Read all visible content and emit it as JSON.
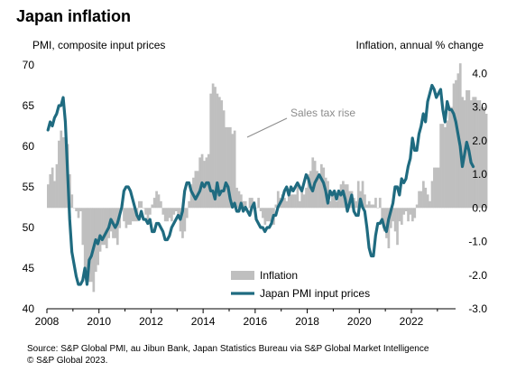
{
  "header": {
    "title": "Japan inflation",
    "left_axis_title": "PMI, composite input prices",
    "right_axis_title": "Inflation, annual % change"
  },
  "footer": {
    "source": "Source: S&P Global PMI, au Jibun Bank, Japan Statistics Bureau via S&P Global Market Intelligence",
    "copyright": "© S&P Global 2023."
  },
  "colors": {
    "inflation_bar": "#bfbfbf",
    "pmi_line": "#1f6b80",
    "annotation": "#8c8c8c"
  },
  "chart_data": {
    "type": "bar",
    "title": "Japan inflation",
    "x_ticks": [
      "2008",
      "2010",
      "2012",
      "2014",
      "2016",
      "2018",
      "2020",
      "2022"
    ],
    "left_axis": {
      "label": "PMI, composite input prices",
      "ticks": [
        "40",
        "45",
        "50",
        "55",
        "60",
        "65",
        "70"
      ],
      "ylim": [
        40,
        70
      ]
    },
    "right_axis": {
      "label": "Inflation, annual % change",
      "ticks": [
        "-3.0",
        "-2.0",
        "-1.0",
        "0.0",
        "1.0",
        "2.0",
        "3.0",
        "4.0"
      ],
      "ylim": [
        -3,
        4.25
      ]
    },
    "annotation": {
      "text": "Sales tax rise",
      "points_to": "2015-04"
    },
    "series": [
      {
        "name": "Inflation",
        "kind": "bar",
        "axis": "right",
        "x_start": "2008-01",
        "frequency": "monthly",
        "values": [
          0.7,
          1.0,
          1.2,
          0.8,
          1.3,
          2.0,
          2.3,
          2.1,
          2.1,
          1.9,
          1.0,
          0.4,
          0.0,
          -0.1,
          -0.3,
          -0.1,
          -1.1,
          -1.8,
          -2.2,
          -2.2,
          -2.2,
          -2.5,
          -1.9,
          -1.7,
          -1.3,
          -1.1,
          -1.1,
          -1.2,
          -0.9,
          -0.7,
          -0.9,
          -0.9,
          -1.1,
          -0.6,
          0.1,
          -0.4,
          -0.6,
          -0.5,
          -0.5,
          -0.4,
          -0.4,
          -0.4,
          0.2,
          0.2,
          0.0,
          -0.2,
          -0.5,
          -0.2,
          0.1,
          0.3,
          0.5,
          0.4,
          0.2,
          -0.2,
          -0.4,
          -0.4,
          -0.3,
          -0.4,
          -0.2,
          -0.1,
          -0.3,
          -0.7,
          -0.9,
          -0.7,
          -0.3,
          0.2,
          0.7,
          0.9,
          1.1,
          1.1,
          1.5,
          1.6,
          1.4,
          1.5,
          1.6,
          3.4,
          3.7,
          3.6,
          3.4,
          3.3,
          3.2,
          2.9,
          2.4,
          2.4,
          2.4,
          2.2,
          2.3,
          0.6,
          0.5,
          0.4,
          0.2,
          0.2,
          0.0,
          0.3,
          0.3,
          0.2,
          0.0,
          0.3,
          -0.1,
          -0.3,
          -0.5,
          -0.4,
          -0.4,
          -0.5,
          -0.5,
          0.1,
          0.5,
          0.3,
          0.4,
          0.3,
          0.2,
          0.4,
          0.4,
          0.4,
          0.4,
          0.7,
          0.2,
          0.6,
          0.4,
          0.6,
          1.0,
          1.1,
          1.5,
          1.4,
          1.1,
          1.0,
          1.3,
          1.2,
          0.9,
          0.8,
          0.2,
          0.5,
          0.5,
          0.2,
          0.5,
          0.7,
          0.8,
          0.7,
          0.7,
          0.5,
          0.5,
          0.3,
          0.2,
          0.8,
          0.5,
          0.8,
          0.4,
          0.1,
          0.2,
          0.1,
          0.1,
          0.3,
          0.0,
          0.3,
          -0.4,
          -0.7,
          -0.9,
          -1.2,
          -0.6,
          -0.4,
          -0.7,
          -1.1,
          -0.4,
          -0.5,
          -0.2,
          -0.1,
          -0.4,
          -0.2,
          -0.4,
          -0.3,
          0.1,
          0.5,
          0.5,
          0.8,
          0.6,
          0.4,
          0.2,
          0.8,
          1.2,
          1.2,
          1.2,
          2.5,
          2.5,
          2.4,
          2.6,
          3.0,
          3.0,
          3.7,
          3.8,
          4.0,
          4.3,
          3.3,
          3.2,
          3.5,
          3.5,
          3.2,
          3.3,
          3.3,
          3.2,
          3.2,
          3.0,
          3.0,
          2.8
        ]
      },
      {
        "name": "Japan PMI input prices",
        "kind": "line",
        "axis": "left",
        "x_start": "2008-01",
        "frequency": "monthly",
        "values": [
          62.0,
          63.0,
          62.5,
          63.5,
          64.0,
          65.0,
          65.0,
          66.0,
          63.0,
          57.0,
          51.0,
          47.0,
          45.5,
          44.0,
          43.0,
          43.0,
          43.5,
          45.0,
          43.0,
          46.0,
          46.5,
          47.5,
          48.5,
          48.0,
          49.0,
          48.5,
          49.0,
          49.5,
          50.0,
          51.0,
          50.5,
          50.0,
          50.5,
          51.5,
          52.5,
          54.5,
          55.0,
          55.0,
          54.5,
          53.5,
          52.5,
          51.5,
          51.0,
          52.0,
          51.0,
          51.0,
          50.5,
          51.0,
          49.5,
          49.5,
          50.5,
          50.5,
          50.0,
          49.5,
          48.5,
          48.5,
          49.0,
          50.0,
          50.5,
          51.0,
          51.5,
          51.0,
          52.0,
          54.5,
          55.5,
          55.5,
          54.5,
          54.0,
          53.5,
          54.0,
          54.5,
          55.5,
          55.0,
          55.5,
          55.5,
          54.5,
          54.5,
          53.5,
          55.5,
          54.0,
          54.5,
          54.5,
          55.5,
          55.0,
          53.5,
          52.5,
          53.0,
          52.0,
          52.0,
          53.0,
          52.0,
          52.5,
          52.0,
          51.5,
          52.5,
          53.0,
          51.0,
          50.5,
          50.0,
          50.0,
          49.5,
          50.0,
          50.0,
          50.5,
          51.5,
          51.5,
          52.5,
          53.0,
          53.5,
          54.5,
          55.0,
          54.0,
          55.0,
          54.5,
          55.0,
          55.5,
          55.0,
          54.5,
          55.5,
          56.5,
          56.0,
          55.0,
          54.5,
          55.5,
          56.0,
          56.5,
          56.0,
          55.5,
          54.5,
          53.0,
          54.5,
          54.0,
          54.5,
          53.5,
          54.5,
          54.0,
          54.5,
          53.5,
          52.0,
          53.0,
          54.0,
          52.0,
          51.5,
          51.5,
          53.5,
          52.5,
          52.0,
          50.0,
          47.5,
          46.5,
          46.5,
          49.0,
          50.5,
          50.5,
          51.0,
          50.0,
          49.5,
          51.0,
          52.0,
          53.0,
          55.0,
          55.0,
          54.0,
          56.0,
          55.5,
          56.0,
          57.5,
          58.5,
          61.0,
          59.5,
          59.5,
          61.5,
          62.5,
          64.0,
          63.0,
          65.5,
          66.5,
          67.5,
          67.0,
          66.0,
          66.5,
          67.0,
          64.5,
          63.0,
          65.5,
          64.5,
          64.5,
          64.0,
          63.0,
          61.5,
          60.0,
          57.5,
          59.0,
          60.5,
          59.5,
          58.0,
          57.5
        ]
      }
    ]
  }
}
